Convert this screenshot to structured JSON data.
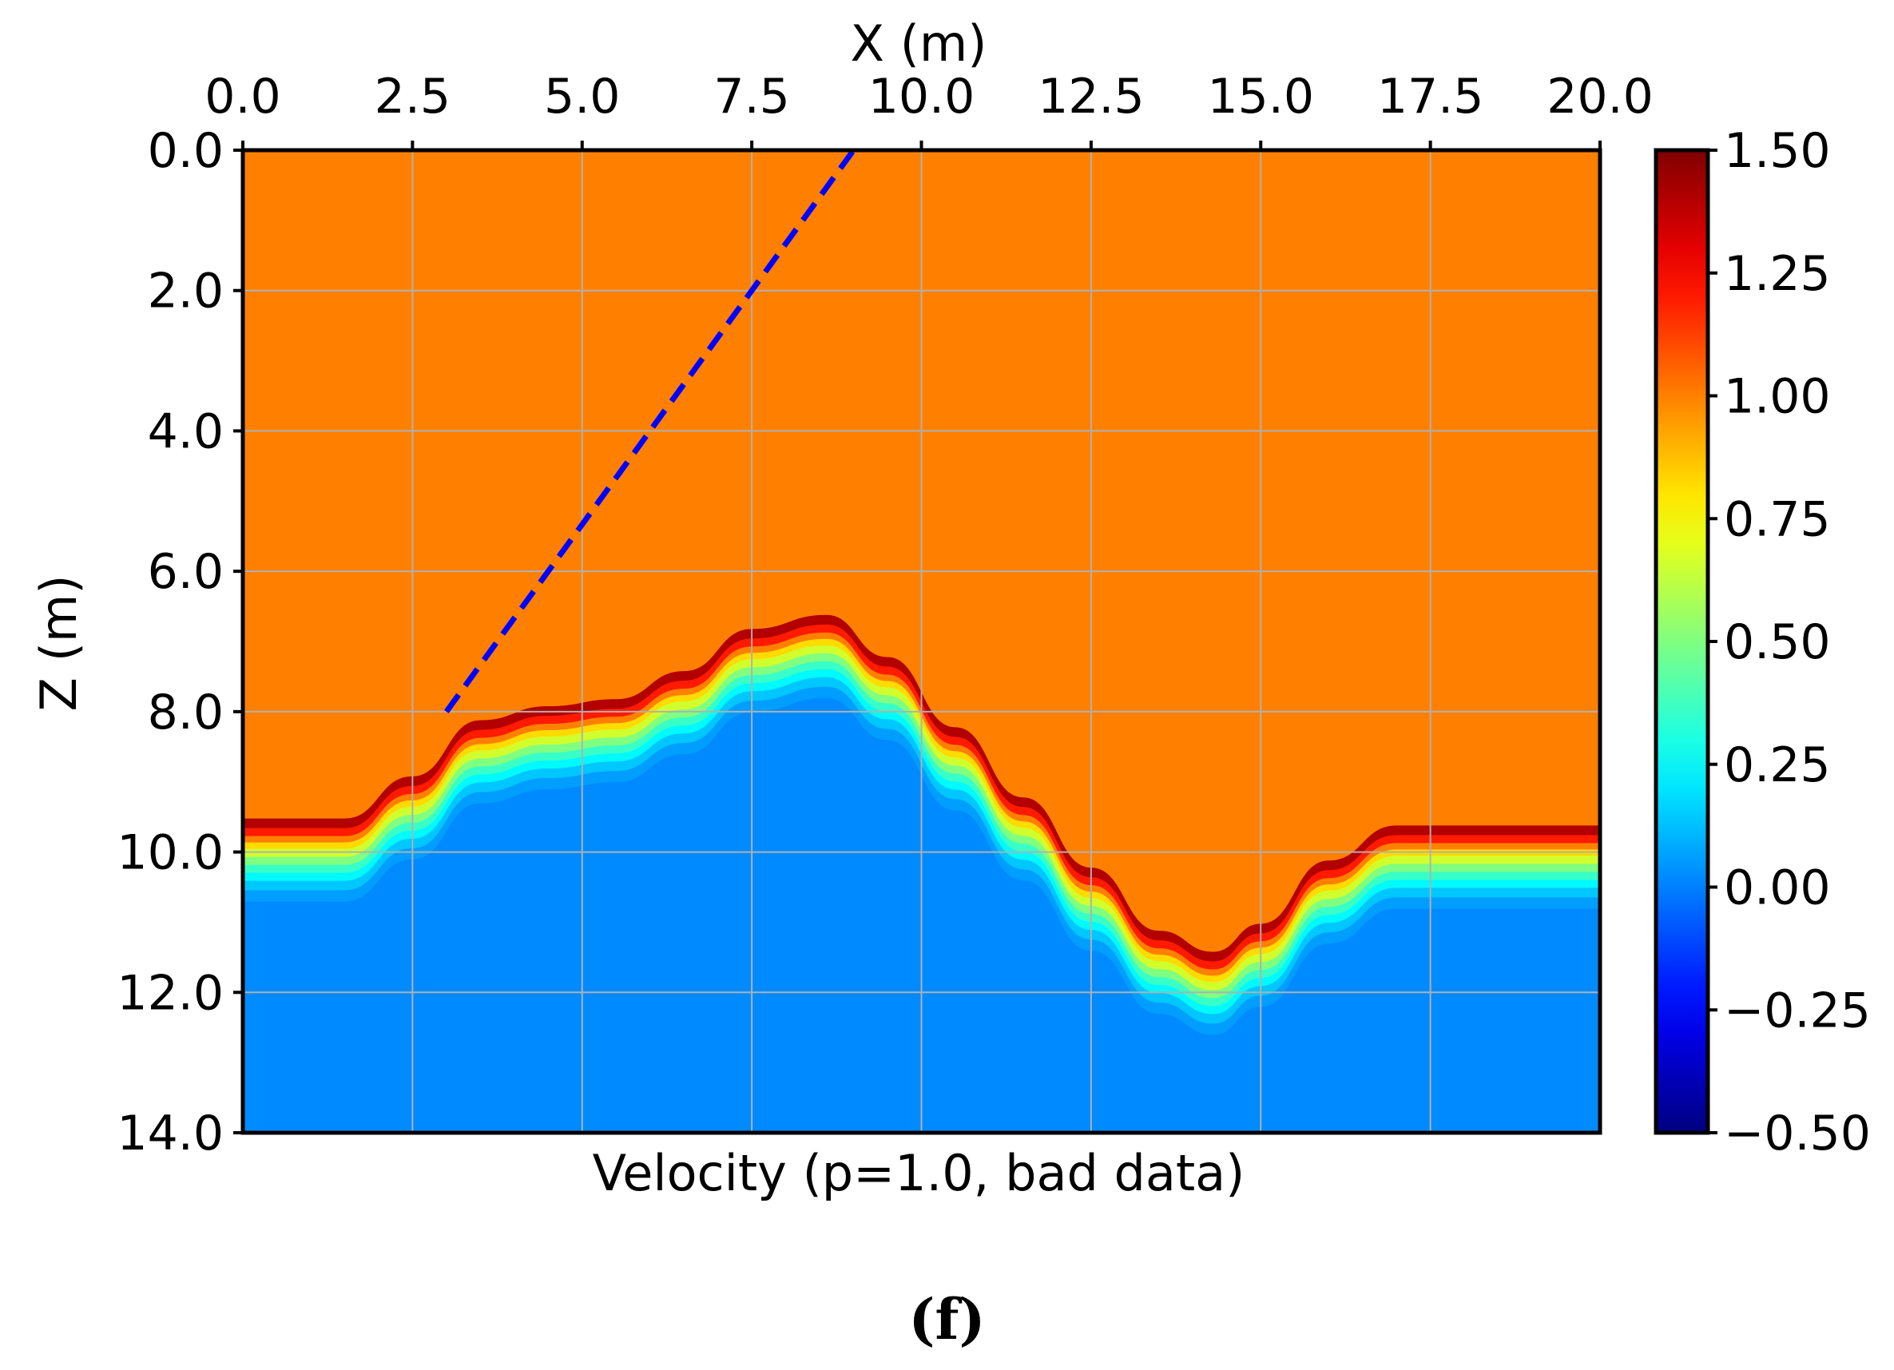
{
  "chart_data": {
    "type": "heatmap",
    "title": "",
    "xlabel": "X (m)",
    "ylabel": "Z (m)",
    "caption": "Velocity (p=1.0, bad data)",
    "xlim": [
      0.0,
      20.0
    ],
    "ylim": [
      0.0,
      14.0
    ],
    "y_inverted": true,
    "x_axis_position": "top",
    "x_ticks": [
      "0.0",
      "2.5",
      "5.0",
      "7.5",
      "10.0",
      "12.5",
      "15.0",
      "17.5",
      "20.0"
    ],
    "y_ticks": [
      "0.0",
      "2.0",
      "4.0",
      "6.0",
      "8.0",
      "10.0",
      "12.0",
      "14.0"
    ],
    "grid": true,
    "colormap": "jet",
    "colorbar": {
      "range": [
        -0.5,
        1.5
      ],
      "ticks": [
        "1.50",
        "1.25",
        "1.00",
        "0.75",
        "0.50",
        "0.25",
        "0.00",
        "−0.25",
        "−0.50"
      ]
    },
    "upper_layer_value": 1.0,
    "lower_layer_value": 0.0,
    "interface": {
      "x": [
        0.0,
        1.5,
        2.5,
        3.5,
        4.5,
        5.5,
        6.5,
        7.5,
        8.6,
        9.5,
        10.5,
        11.5,
        12.5,
        13.5,
        14.3,
        15.0,
        16.0,
        17.0,
        18.0,
        20.0
      ],
      "z": [
        10.0,
        10.0,
        9.4,
        8.6,
        8.4,
        8.3,
        7.9,
        7.3,
        7.1,
        7.7,
        8.7,
        9.7,
        10.7,
        11.6,
        11.9,
        11.5,
        10.6,
        10.1,
        10.1,
        10.1
      ]
    },
    "dashed_line": {
      "color": "#0000ff",
      "x": [
        3.0,
        9.0
      ],
      "z": [
        8.0,
        0.0
      ]
    }
  },
  "figure": {
    "panel_label": "(f)"
  }
}
